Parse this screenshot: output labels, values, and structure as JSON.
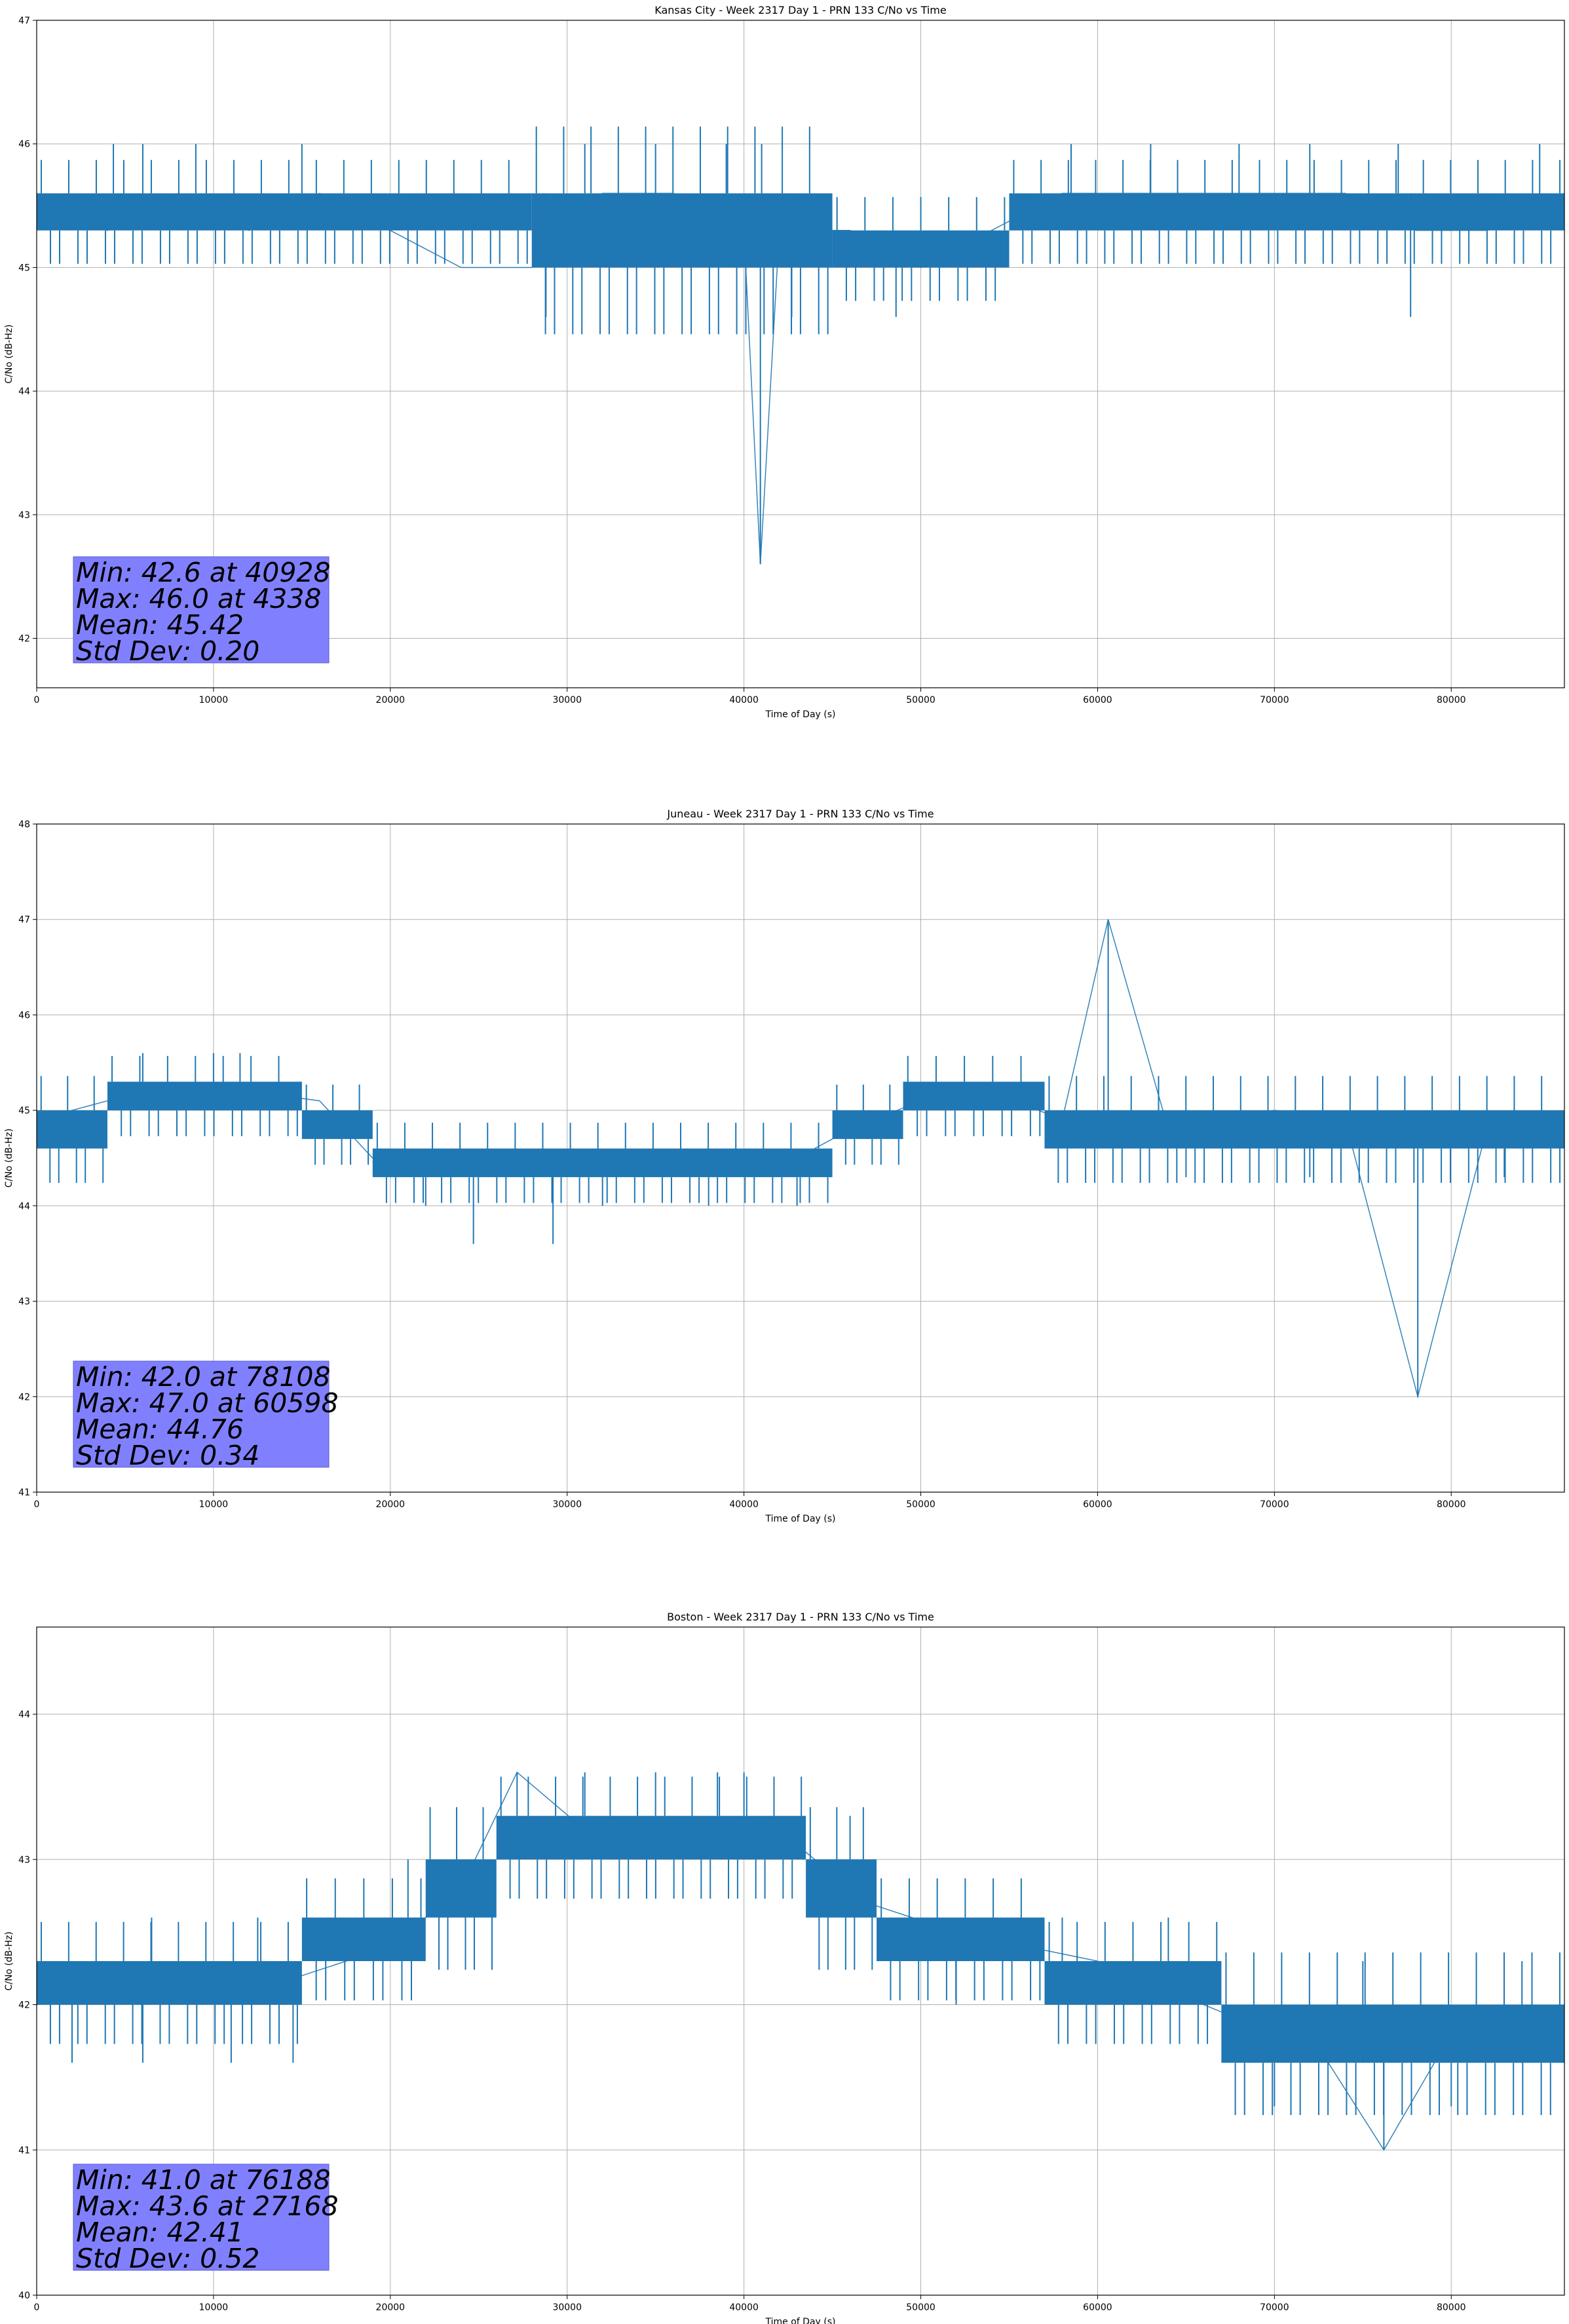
{
  "chart_data": [
    {
      "type": "line",
      "title": "Kansas City - Week 2317 Day 1 - PRN 133 C/No vs Time",
      "xlabel": "Time of Day (s)",
      "ylabel": "C/No (dB-Hz)",
      "xlim": [
        0,
        86400
      ],
      "ylim": [
        41.6,
        47
      ],
      "xticks": [
        0,
        10000,
        20000,
        30000,
        40000,
        50000,
        60000,
        70000,
        80000
      ],
      "yticks": [
        42,
        43,
        44,
        45,
        46,
        47
      ],
      "grid": true,
      "line_color": "#1f77b4",
      "stats_box_color": "#8080ff",
      "stats": [
        "Min: 42.6 at 40928",
        "Max: 46.0 at 4338",
        "Mean: 45.42",
        "Std Dev: 0.20"
      ],
      "series": [
        {
          "x": [
            0,
            4000,
            8000,
            12000,
            16000,
            20000,
            24000,
            28000,
            32000,
            36000,
            40000,
            40928,
            42000,
            46000,
            50000,
            54000,
            58000,
            62000,
            66000,
            70000,
            74000,
            78000,
            82000,
            86400
          ],
          "y": [
            45.6,
            45.3,
            45.6,
            45.3,
            45.6,
            45.3,
            45.0,
            45.0,
            45.6,
            45.6,
            45.3,
            42.6,
            45.3,
            45.3,
            45.0,
            45.3,
            45.6,
            45.6,
            45.6,
            45.6,
            45.6,
            45.3,
            45.3,
            45.6
          ],
          "band": [
            {
              "x": [
                0,
                28000
              ],
              "low": 45.3,
              "high": 45.6
            },
            {
              "x": [
                28000,
                45000
              ],
              "low": 45.0,
              "high": 45.6
            },
            {
              "x": [
                45000,
                55000
              ],
              "low": 45.0,
              "high": 45.3
            },
            {
              "x": [
                55000,
                86400
              ],
              "low": 45.3,
              "high": 45.6
            }
          ],
          "spikes": [
            {
              "x": 4338,
              "y": 46.0
            },
            {
              "x": 6000,
              "y": 46.0
            },
            {
              "x": 9000,
              "y": 46.0
            },
            {
              "x": 15000,
              "y": 46.0
            },
            {
              "x": 31000,
              "y": 46.0
            },
            {
              "x": 35000,
              "y": 46.0
            },
            {
              "x": 39000,
              "y": 46.0
            },
            {
              "x": 41000,
              "y": 46.0
            },
            {
              "x": 58500,
              "y": 46.0
            },
            {
              "x": 63000,
              "y": 46.0
            },
            {
              "x": 68000,
              "y": 46.0
            },
            {
              "x": 72000,
              "y": 46.0
            },
            {
              "x": 77000,
              "y": 46.0
            },
            {
              "x": 85000,
              "y": 46.0
            },
            {
              "x": 28800,
              "y": 44.6
            },
            {
              "x": 40928,
              "y": 42.6
            },
            {
              "x": 42700,
              "y": 44.6
            },
            {
              "x": 48600,
              "y": 44.6
            },
            {
              "x": 77700,
              "y": 44.6
            }
          ]
        }
      ]
    },
    {
      "type": "line",
      "title": "Juneau - Week 2317 Day 1 - PRN 133 C/No vs Time",
      "xlabel": "Time of Day (s)",
      "ylabel": "C/No (dB-Hz)",
      "xlim": [
        0,
        86400
      ],
      "ylim": [
        41,
        48
      ],
      "xticks": [
        0,
        10000,
        20000,
        30000,
        40000,
        50000,
        60000,
        70000,
        80000
      ],
      "yticks": [
        41,
        42,
        43,
        44,
        45,
        46,
        47,
        48
      ],
      "grid": true,
      "line_color": "#1f77b4",
      "stats_box_color": "#8080ff",
      "stats": [
        "Min: 42.0 at 78108",
        "Max: 47.0 at 60598",
        "Mean: 44.76",
        "Std Dev: 0.34"
      ],
      "series": [
        {
          "x": [
            0,
            4000,
            8000,
            12000,
            16000,
            19000,
            24000,
            30000,
            36000,
            42000,
            46000,
            50000,
            54000,
            58000,
            60598,
            64000,
            70000,
            74000,
            78108,
            82000,
            86400
          ],
          "y": [
            44.9,
            45.1,
            45.2,
            45.2,
            45.1,
            44.5,
            44.4,
            44.4,
            44.4,
            44.4,
            44.8,
            45.1,
            45.2,
            44.9,
            47.0,
            44.8,
            45.0,
            44.9,
            42.0,
            44.8,
            44.8
          ],
          "band": [
            {
              "x": [
                0,
                4000
              ],
              "low": 44.6,
              "high": 45.0
            },
            {
              "x": [
                4000,
                15000
              ],
              "low": 45.0,
              "high": 45.3
            },
            {
              "x": [
                15000,
                19000
              ],
              "low": 44.7,
              "high": 45.0
            },
            {
              "x": [
                19000,
                45000
              ],
              "low": 44.3,
              "high": 44.6
            },
            {
              "x": [
                45000,
                49000
              ],
              "low": 44.7,
              "high": 45.0
            },
            {
              "x": [
                49000,
                57000
              ],
              "low": 45.0,
              "high": 45.3
            },
            {
              "x": [
                57000,
                86400
              ],
              "low": 44.6,
              "high": 45.0
            }
          ],
          "spikes": [
            {
              "x": 6000,
              "y": 45.6
            },
            {
              "x": 10000,
              "y": 45.6
            },
            {
              "x": 11500,
              "y": 45.6
            },
            {
              "x": 24700,
              "y": 43.6
            },
            {
              "x": 29200,
              "y": 43.6
            },
            {
              "x": 60598,
              "y": 47.0
            },
            {
              "x": 78108,
              "y": 42.0
            },
            {
              "x": 22000,
              "y": 44.0
            },
            {
              "x": 32000,
              "y": 44.0
            },
            {
              "x": 38000,
              "y": 44.0
            },
            {
              "x": 43000,
              "y": 44.0
            },
            {
              "x": 65000,
              "y": 44.3
            },
            {
              "x": 72000,
              "y": 44.3
            },
            {
              "x": 83000,
              "y": 44.3
            }
          ]
        }
      ]
    },
    {
      "type": "line",
      "title": "Boston - Week 2317 Day 1 - PRN 133 C/No vs Time",
      "xlabel": "Time of Day (s)",
      "ylabel": "C/No (dB-Hz)",
      "xlim": [
        0,
        86400
      ],
      "ylim": [
        40,
        44.6
      ],
      "xticks": [
        0,
        10000,
        20000,
        30000,
        40000,
        50000,
        60000,
        70000,
        80000
      ],
      "yticks": [
        40,
        41,
        42,
        43,
        44
      ],
      "grid": true,
      "line_color": "#1f77b4",
      "stats_box_color": "#8080ff",
      "stats": [
        "Min: 41.0 at 76188",
        "Max: 43.6 at 27168",
        "Mean: 42.41",
        "Std Dev: 0.52"
      ],
      "series": [
        {
          "x": [
            0,
            5000,
            10000,
            15000,
            20000,
            24000,
            27168,
            32000,
            38000,
            43000,
            47000,
            52000,
            56000,
            60000,
            64000,
            68000,
            72000,
            76188,
            80000,
            86400
          ],
          "y": [
            42.0,
            42.1,
            42.1,
            42.2,
            42.4,
            42.8,
            43.6,
            43.1,
            43.2,
            43.1,
            42.7,
            42.5,
            42.4,
            42.3,
            42.1,
            41.9,
            41.8,
            41.0,
            41.8,
            41.8
          ],
          "band": [
            {
              "x": [
                0,
                15000
              ],
              "low": 42.0,
              "high": 42.3
            },
            {
              "x": [
                15000,
                22000
              ],
              "low": 42.3,
              "high": 42.6
            },
            {
              "x": [
                22000,
                26000
              ],
              "low": 42.6,
              "high": 43.0
            },
            {
              "x": [
                26000,
                43500
              ],
              "low": 43.0,
              "high": 43.3
            },
            {
              "x": [
                43500,
                47500
              ],
              "low": 42.6,
              "high": 43.0
            },
            {
              "x": [
                47500,
                57000
              ],
              "low": 42.3,
              "high": 42.6
            },
            {
              "x": [
                57000,
                67000
              ],
              "low": 42.0,
              "high": 42.3
            },
            {
              "x": [
                67000,
                86400
              ],
              "low": 41.6,
              "high": 42.0
            }
          ],
          "spikes": [
            {
              "x": 27168,
              "y": 43.6
            },
            {
              "x": 31000,
              "y": 43.6
            },
            {
              "x": 35000,
              "y": 43.6
            },
            {
              "x": 38500,
              "y": 43.6
            },
            {
              "x": 40000,
              "y": 43.6
            },
            {
              "x": 76188,
              "y": 41.0
            },
            {
              "x": 2000,
              "y": 41.6
            },
            {
              "x": 6000,
              "y": 41.6
            },
            {
              "x": 11000,
              "y": 41.6
            },
            {
              "x": 14500,
              "y": 41.6
            },
            {
              "x": 6500,
              "y": 42.6
            },
            {
              "x": 12500,
              "y": 42.6
            },
            {
              "x": 21000,
              "y": 43.0
            },
            {
              "x": 46000,
              "y": 43.3
            },
            {
              "x": 52000,
              "y": 42.0
            },
            {
              "x": 58000,
              "y": 42.6
            },
            {
              "x": 64000,
              "y": 42.6
            },
            {
              "x": 70000,
              "y": 41.3
            },
            {
              "x": 75000,
              "y": 42.3
            },
            {
              "x": 80000,
              "y": 41.3
            },
            {
              "x": 84000,
              "y": 42.3
            }
          ]
        }
      ]
    }
  ]
}
